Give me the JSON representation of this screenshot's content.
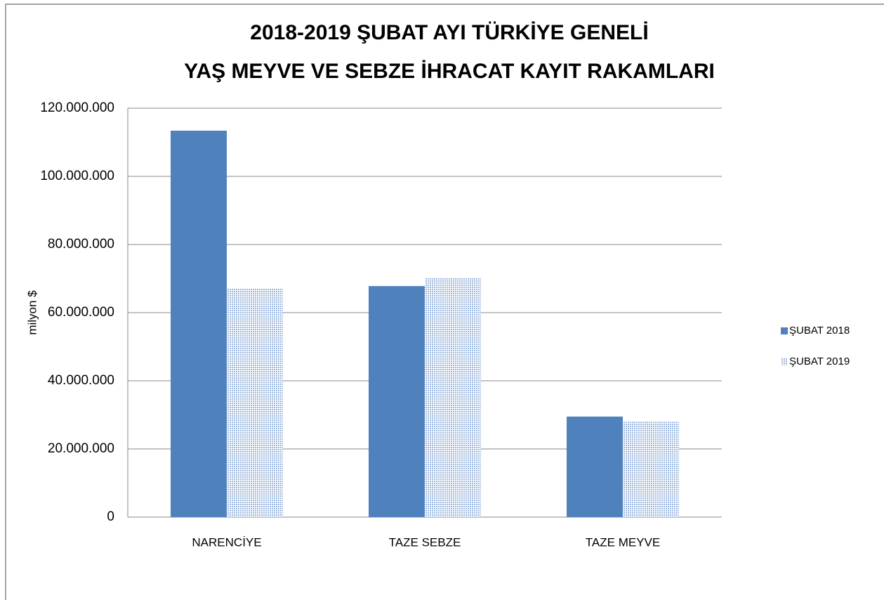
{
  "chart_data": {
    "type": "bar",
    "title": [
      "2018-2019 ŞUBAT AYI TÜRKİYE GENELİ",
      "YAŞ MEYVE VE SEBZE İHRACAT KAYIT RAKAMLARI"
    ],
    "y_label": "milyon $",
    "categories": [
      "NARENCİYE",
      "TAZE SEBZE",
      "TAZE MEYVE"
    ],
    "series": [
      {
        "name": "ŞUBAT 2018",
        "color": "#4f81bd",
        "values": [
          113400000,
          67800000,
          29500000
        ]
      },
      {
        "name": "ŞUBAT 2019",
        "color": "#9db7dc",
        "pattern": "dotted",
        "values": [
          67000000,
          70300000,
          28000000
        ]
      }
    ],
    "ylim": [
      0,
      120000000
    ],
    "yticks": [
      0,
      {
        "value": 20000000,
        "label": "20.000.000"
      },
      {
        "value": 40000000,
        "label": "40.000.000"
      },
      {
        "value": 60000000,
        "label": "60.000.000"
      },
      {
        "value": 80000000,
        "label": "80.000.000"
      },
      {
        "value": 100000000,
        "label": "100.000.000"
      },
      {
        "value": 120000000,
        "label": "120.000.000"
      }
    ],
    "grid": true,
    "legend": "right"
  }
}
